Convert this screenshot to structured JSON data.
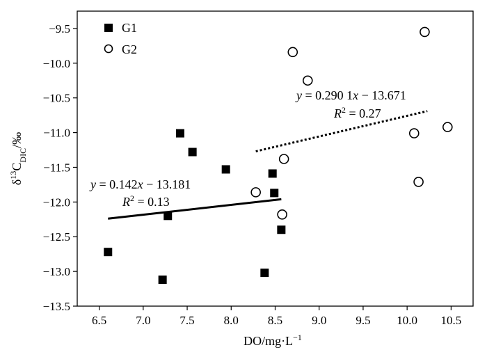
{
  "chart_data": {
    "type": "scatter",
    "xlabel": "DO/mg·L",
    "xlabel_sup": "−1",
    "ylabel": "δ",
    "ylabel_sup": "13",
    "ylabel_main": "C",
    "ylabel_sub": "DIC",
    "ylabel_unit": "/‰",
    "xlim": [
      6.25,
      10.75
    ],
    "ylim": [
      -13.5,
      -9.25
    ],
    "xticks": [
      "6.5",
      "7.0",
      "7.5",
      "8.0",
      "8.5",
      "9.0",
      "9.5",
      "10.0",
      "10.5"
    ],
    "yticks": [
      "−9.5",
      "−10.0",
      "−10.5",
      "−11.0",
      "−11.5",
      "−12.0",
      "−12.5",
      "−13.0",
      "−13.5"
    ],
    "grid": false,
    "legend_position": "top-left",
    "series": [
      {
        "name": "G1",
        "marker": "filled-square",
        "color": "#000000",
        "points": [
          {
            "x": 6.6,
            "y": -12.72
          },
          {
            "x": 7.22,
            "y": -13.12
          },
          {
            "x": 7.28,
            "y": -12.2
          },
          {
            "x": 7.42,
            "y": -11.01
          },
          {
            "x": 7.56,
            "y": -11.28
          },
          {
            "x": 7.94,
            "y": -11.53
          },
          {
            "x": 8.38,
            "y": -13.02
          },
          {
            "x": 8.47,
            "y": -11.59
          },
          {
            "x": 8.49,
            "y": -11.87
          },
          {
            "x": 8.57,
            "y": -12.4
          }
        ],
        "fit": {
          "x0": 6.6,
          "y0": -12.24,
          "x1": 8.57,
          "y1": -11.96,
          "style": "solid",
          "eq_prefix": "y",
          "eq_body": " = 0.142",
          "eq_var": "x",
          "eq_rest": " − 13.181",
          "r2_label": "R",
          "r2_sup": "2",
          "r2_value": " = 0.13"
        }
      },
      {
        "name": "G2",
        "marker": "open-circle",
        "color": "#000000",
        "points": [
          {
            "x": 8.28,
            "y": -11.86
          },
          {
            "x": 8.58,
            "y": -12.18
          },
          {
            "x": 8.6,
            "y": -11.38
          },
          {
            "x": 8.7,
            "y": -9.84
          },
          {
            "x": 8.87,
            "y": -10.25
          },
          {
            "x": 10.08,
            "y": -11.01
          },
          {
            "x": 10.13,
            "y": -11.71
          },
          {
            "x": 10.2,
            "y": -9.55
          },
          {
            "x": 10.46,
            "y": -10.92
          }
        ],
        "fit": {
          "x0": 8.28,
          "y0": -11.27,
          "x1": 10.23,
          "y1": -10.69,
          "style": "dotted",
          "eq_prefix": "y",
          "eq_body": " = 0.290 1",
          "eq_var": "x",
          "eq_rest": " − 13.671",
          "r2_label": "R",
          "r2_sup": "2",
          "r2_value": " = 0.27"
        }
      }
    ]
  }
}
